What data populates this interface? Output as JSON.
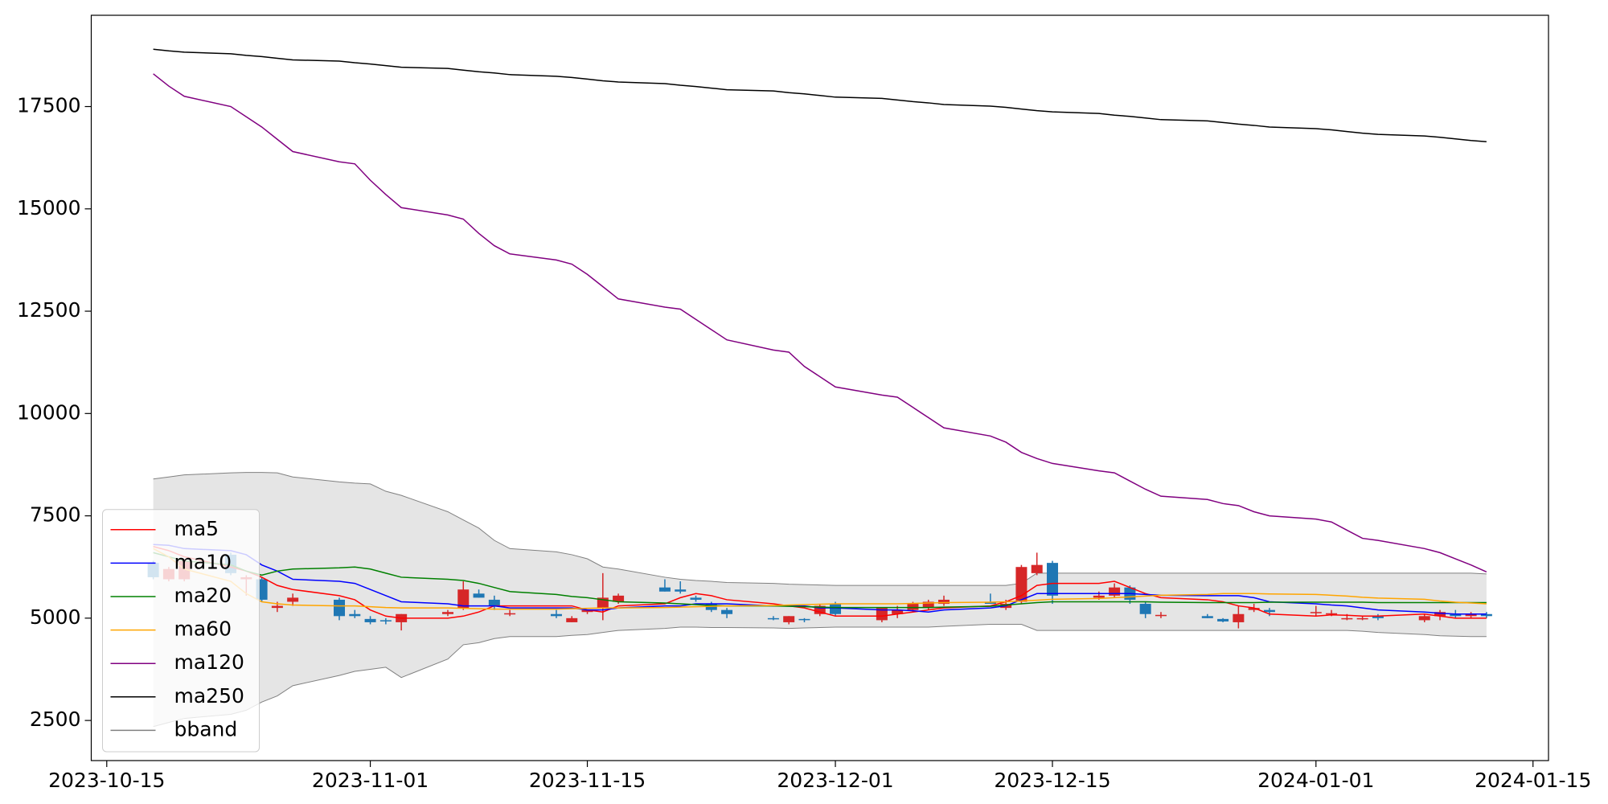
{
  "chart_data": {
    "type": "candlestick",
    "x": [
      "2023-10-18",
      "2023-10-19",
      "2023-10-20",
      "2023-10-23",
      "2023-10-24",
      "2023-10-25",
      "2023-10-26",
      "2023-10-27",
      "2023-10-30",
      "2023-10-31",
      "2023-11-01",
      "2023-11-02",
      "2023-11-03",
      "2023-11-06",
      "2023-11-07",
      "2023-11-08",
      "2023-11-09",
      "2023-11-10",
      "2023-11-13",
      "2023-11-14",
      "2023-11-15",
      "2023-11-16",
      "2023-11-17",
      "2023-11-20",
      "2023-11-21",
      "2023-11-22",
      "2023-11-23",
      "2023-11-24",
      "2023-11-27",
      "2023-11-28",
      "2023-11-29",
      "2023-11-30",
      "2023-12-01",
      "2023-12-04",
      "2023-12-05",
      "2023-12-06",
      "2023-12-07",
      "2023-12-08",
      "2023-12-11",
      "2023-12-12",
      "2023-12-13",
      "2023-12-14",
      "2023-12-15",
      "2023-12-18",
      "2023-12-19",
      "2023-12-20",
      "2023-12-21",
      "2023-12-22",
      "2023-12-25",
      "2023-12-26",
      "2023-12-27",
      "2023-12-28",
      "2023-12-29",
      "2024-01-01",
      "2024-01-02",
      "2024-01-03",
      "2024-01-04",
      "2024-01-05",
      "2024-01-08",
      "2024-01-09",
      "2024-01-10",
      "2024-01-11",
      "2024-01-12"
    ],
    "open": [
      6350,
      5950,
      5950,
      6550,
      5950,
      5950,
      5250,
      5400,
      5450,
      5100,
      4980,
      4950,
      4900,
      5100,
      5250,
      5600,
      5450,
      5100,
      5100,
      4900,
      5150,
      5250,
      5400,
      5750,
      5700,
      5500,
      5350,
      5200,
      5000,
      4900,
      4980,
      5100,
      5350,
      4950,
      5100,
      5200,
      5250,
      5350,
      5400,
      5250,
      5400,
      6100,
      6350,
      5500,
      5550,
      5750,
      5350,
      5050,
      5050,
      4980,
      4900,
      5200,
      5200,
      5150,
      5100,
      5000,
      4980,
      5050,
      4950,
      5050,
      5100,
      5050,
      5100
    ],
    "high": [
      6400,
      6250,
      6450,
      6600,
      6050,
      6000,
      5400,
      5600,
      5500,
      5200,
      5050,
      5000,
      5100,
      5200,
      5900,
      5700,
      5550,
      5200,
      5200,
      5050,
      5200,
      6100,
      5600,
      5950,
      5900,
      5550,
      5400,
      5250,
      5050,
      5050,
      5000,
      5350,
      5400,
      5250,
      5300,
      5400,
      5450,
      5550,
      5600,
      5450,
      6300,
      6600,
      6400,
      5650,
      5850,
      5800,
      5400,
      5150,
      5100,
      5000,
      5300,
      5350,
      5250,
      5300,
      5200,
      5100,
      5050,
      5100,
      5100,
      5200,
      5200,
      5150,
      5150
    ],
    "low": [
      5950,
      5900,
      5900,
      6050,
      5550,
      5400,
      5150,
      5300,
      4950,
      5000,
      4850,
      4850,
      4700,
      5050,
      5200,
      5500,
      5200,
      5050,
      5000,
      4900,
      5100,
      4950,
      5350,
      5650,
      5600,
      5400,
      5150,
      5000,
      4950,
      4850,
      4900,
      5050,
      5050,
      4900,
      5000,
      5150,
      5200,
      5300,
      5350,
      5200,
      5350,
      6050,
      5350,
      5450,
      5500,
      5350,
      5000,
      5000,
      5000,
      4900,
      4750,
      5150,
      5050,
      5050,
      5050,
      4950,
      4950,
      4950,
      4900,
      4950,
      5000,
      5000,
      5000
    ],
    "close": [
      6000,
      6200,
      6400,
      6100,
      6000,
      5450,
      5300,
      5500,
      5050,
      5050,
      4900,
      4920,
      5100,
      5150,
      5700,
      5500,
      5300,
      5120,
      5050,
      5000,
      5200,
      5500,
      5550,
      5650,
      5650,
      5450,
      5200,
      5100,
      4980,
      5050,
      4960,
      5300,
      5100,
      5250,
      5200,
      5350,
      5400,
      5450,
      5350,
      5350,
      6250,
      6300,
      5550,
      5550,
      5750,
      5450,
      5100,
      5080,
      5000,
      4920,
      5100,
      5250,
      5150,
      5150,
      5120,
      5000,
      5000,
      5000,
      5050,
      5150,
      5050,
      5100,
      5050
    ],
    "up_color": "#d62728",
    "down_color": "#1f77b4",
    "series": [
      {
        "name": "ma5",
        "color": "#ff0000",
        "values": [
          6750,
          6650,
          6500,
          6250,
          6150,
          6000,
          5800,
          5700,
          5550,
          5450,
          5200,
          5050,
          5000,
          5000,
          5050,
          5150,
          5300,
          5300,
          5300,
          5300,
          5200,
          5150,
          5300,
          5350,
          5500,
          5600,
          5550,
          5450,
          5350,
          5300,
          5250,
          5150,
          5050,
          5050,
          5100,
          5150,
          5200,
          5250,
          5300,
          5400,
          5550,
          5800,
          5850,
          5850,
          5900,
          5750,
          5600,
          5500,
          5450,
          5400,
          5300,
          5250,
          5100,
          5050,
          5080,
          5070,
          5050,
          5050,
          5100,
          5050,
          5000,
          5000,
          5000
        ]
      },
      {
        "name": "ma10",
        "color": "#0000ff",
        "values": [
          6800,
          6780,
          6700,
          6650,
          6550,
          6300,
          6150,
          5950,
          5900,
          5850,
          5700,
          5550,
          5400,
          5350,
          5300,
          5300,
          5300,
          5250,
          5250,
          5250,
          5200,
          5200,
          5250,
          5300,
          5300,
          5350,
          5350,
          5350,
          5300,
          5300,
          5300,
          5250,
          5250,
          5200,
          5200,
          5180,
          5150,
          5200,
          5250,
          5300,
          5450,
          5600,
          5600,
          5600,
          5600,
          5600,
          5580,
          5560,
          5550,
          5550,
          5550,
          5500,
          5400,
          5350,
          5320,
          5300,
          5250,
          5200,
          5150,
          5120,
          5100,
          5100,
          5100
        ]
      },
      {
        "name": "ma20",
        "color": "#008000",
        "values": [
          6600,
          6500,
          6400,
          6300,
          6150,
          6050,
          6150,
          6200,
          6230,
          6250,
          6200,
          6100,
          6000,
          5950,
          5920,
          5850,
          5750,
          5650,
          5580,
          5530,
          5500,
          5450,
          5400,
          5370,
          5350,
          5330,
          5310,
          5300,
          5300,
          5290,
          5280,
          5270,
          5260,
          5260,
          5260,
          5260,
          5260,
          5270,
          5290,
          5320,
          5350,
          5380,
          5400,
          5400,
          5400,
          5400,
          5400,
          5390,
          5380,
          5380,
          5380,
          5380,
          5390,
          5390,
          5390,
          5390,
          5390,
          5380,
          5380,
          5380,
          5380,
          5380,
          5380
        ]
      },
      {
        "name": "ma60",
        "color": "#ffa500",
        "values": [
          6700,
          6500,
          6200,
          5900,
          5600,
          5400,
          5350,
          5320,
          5300,
          5300,
          5280,
          5260,
          5250,
          5250,
          5240,
          5230,
          5220,
          5220,
          5220,
          5230,
          5240,
          5250,
          5250,
          5260,
          5270,
          5280,
          5290,
          5300,
          5310,
          5320,
          5330,
          5340,
          5350,
          5350,
          5350,
          5360,
          5370,
          5380,
          5390,
          5400,
          5420,
          5440,
          5460,
          5480,
          5500,
          5520,
          5540,
          5560,
          5580,
          5600,
          5600,
          5600,
          5590,
          5580,
          5560,
          5540,
          5510,
          5490,
          5460,
          5420,
          5390,
          5370,
          5350
        ]
      },
      {
        "name": "ma120",
        "color": "#800080",
        "values": [
          18300,
          18000,
          17750,
          17500,
          17250,
          17000,
          16700,
          16400,
          16150,
          16100,
          15700,
          15350,
          15030,
          14850,
          14750,
          14400,
          14100,
          13900,
          13750,
          13650,
          13400,
          13100,
          12800,
          12600,
          12550,
          12300,
          12050,
          11800,
          11550,
          11500,
          11150,
          10900,
          10650,
          10450,
          10400,
          10150,
          9900,
          9650,
          9450,
          9300,
          9050,
          8900,
          8780,
          8600,
          8550,
          8350,
          8150,
          7980,
          7900,
          7800,
          7750,
          7600,
          7500,
          7420,
          7350,
          7150,
          6950,
          6900,
          6700,
          6600,
          6450,
          6300,
          6130
        ]
      },
      {
        "name": "ma250",
        "color": "#000000",
        "values": [
          18900,
          18860,
          18830,
          18790,
          18750,
          18720,
          18680,
          18640,
          18610,
          18570,
          18540,
          18500,
          18460,
          18430,
          18390,
          18350,
          18320,
          18280,
          18240,
          18210,
          18170,
          18130,
          18100,
          18060,
          18020,
          17990,
          17950,
          17910,
          17880,
          17840,
          17810,
          17770,
          17730,
          17700,
          17660,
          17620,
          17590,
          17550,
          17510,
          17480,
          17440,
          17400,
          17370,
          17330,
          17290,
          17260,
          17220,
          17180,
          17150,
          17110,
          17070,
          17040,
          17000,
          16960,
          16930,
          16890,
          16850,
          16820,
          16780,
          16750,
          16710,
          16670,
          16640
        ]
      }
    ],
    "bband": {
      "name": "bband",
      "color": "#808080",
      "fill": "#e5e5e5",
      "upper": [
        8400,
        8450,
        8500,
        8550,
        8560,
        8560,
        8550,
        8450,
        8330,
        8300,
        8280,
        8100,
        8000,
        7600,
        7400,
        7200,
        6900,
        6700,
        6620,
        6550,
        6450,
        6250,
        6200,
        6000,
        5950,
        5920,
        5900,
        5870,
        5850,
        5830,
        5820,
        5810,
        5800,
        5800,
        5800,
        5800,
        5800,
        5800,
        5800,
        5800,
        5850,
        6100,
        6100,
        6100,
        6100,
        6100,
        6100,
        6100,
        6100,
        6100,
        6100,
        6100,
        6100,
        6100,
        6100,
        6100,
        6100,
        6100,
        6100,
        6100,
        6100,
        6100,
        6080
      ],
      "lower": [
        2350,
        2450,
        2550,
        2650,
        2750,
        2950,
        3100,
        3350,
        3600,
        3700,
        3750,
        3800,
        3550,
        4000,
        4350,
        4400,
        4500,
        4550,
        4550,
        4580,
        4600,
        4650,
        4700,
        4750,
        4780,
        4780,
        4770,
        4770,
        4760,
        4750,
        4760,
        4770,
        4780,
        4780,
        4780,
        4780,
        4780,
        4800,
        4850,
        4850,
        4850,
        4700,
        4700,
        4700,
        4700,
        4700,
        4700,
        4700,
        4700,
        4700,
        4700,
        4700,
        4700,
        4700,
        4700,
        4700,
        4680,
        4650,
        4600,
        4570,
        4560,
        4550,
        4550
      ]
    },
    "xlim": [
      "2023-10-14",
      "2024-01-16"
    ],
    "xticks": [
      "2023-10-15",
      "2023-11-01",
      "2023-11-15",
      "2023-12-01",
      "2023-12-15",
      "2024-01-01",
      "2024-01-15"
    ],
    "ylim": [
      1520,
      19730
    ],
    "yticks": [
      2500,
      5000,
      7500,
      10000,
      12500,
      15000,
      17500
    ],
    "legend": "lower left"
  }
}
